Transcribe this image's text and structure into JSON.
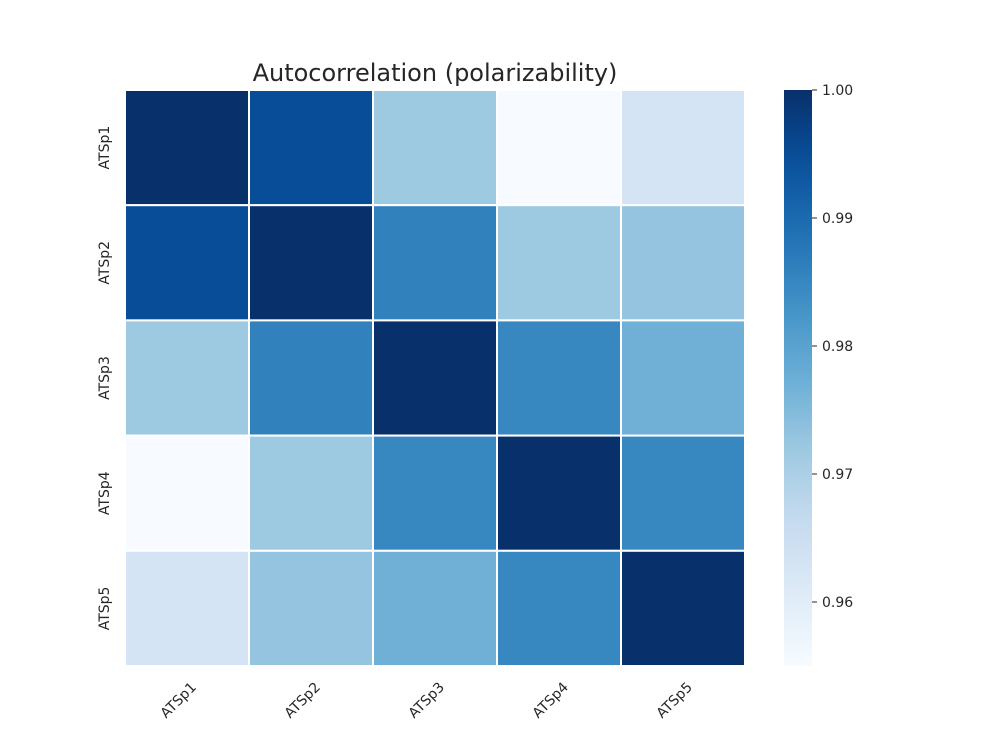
{
  "chart_data": {
    "type": "heatmap",
    "title": "Autocorrelation (polarizability)",
    "x_categories": [
      "ATSp1",
      "ATSp2",
      "ATSp3",
      "ATSp4",
      "ATSp5"
    ],
    "y_categories": [
      "ATSp1",
      "ATSp2",
      "ATSp3",
      "ATSp4",
      "ATSp5"
    ],
    "values": [
      [
        1.0,
        0.995,
        0.972,
        0.955,
        0.963
      ],
      [
        0.995,
        1.0,
        0.986,
        0.972,
        0.973
      ],
      [
        0.972,
        0.986,
        1.0,
        0.985,
        0.977
      ],
      [
        0.955,
        0.972,
        0.985,
        1.0,
        0.985
      ],
      [
        0.963,
        0.973,
        0.977,
        0.985,
        1.0
      ]
    ],
    "colorscale": "Blues",
    "colorbar": {
      "min": 0.955,
      "max": 1.0,
      "ticks": [
        "0.96",
        "0.97",
        "0.98",
        "0.99",
        "1.00"
      ]
    },
    "cell_border_color": "#ffffff",
    "grid": false
  }
}
